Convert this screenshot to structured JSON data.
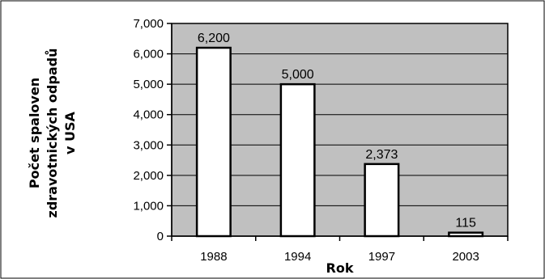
{
  "chart_data": {
    "type": "bar",
    "categories": [
      "1988",
      "1994",
      "1997",
      "2003"
    ],
    "values": [
      6200,
      5000,
      2373,
      115
    ],
    "data_labels": [
      "6,200",
      "5,000",
      "2,373",
      "115"
    ],
    "title": "",
    "xlabel": "Rok",
    "ylabel_lines": [
      "Počet spaloven",
      "zdravotnických odpadů",
      "v USA"
    ],
    "ylim": [
      0,
      7000
    ],
    "yticks": [
      0,
      1000,
      2000,
      3000,
      4000,
      5000,
      6000,
      7000
    ],
    "ytick_labels": [
      "0",
      "1,000",
      "2,000",
      "3,000",
      "4,000",
      "5,000",
      "6,000",
      "7,000"
    ],
    "grid": true,
    "legend": "none",
    "colors": {
      "plot_background": "#c0c0c0",
      "bar_fill": "#ffffff",
      "bar_stroke": "#000000",
      "gridline": "#000000",
      "frame": "#000000"
    }
  }
}
